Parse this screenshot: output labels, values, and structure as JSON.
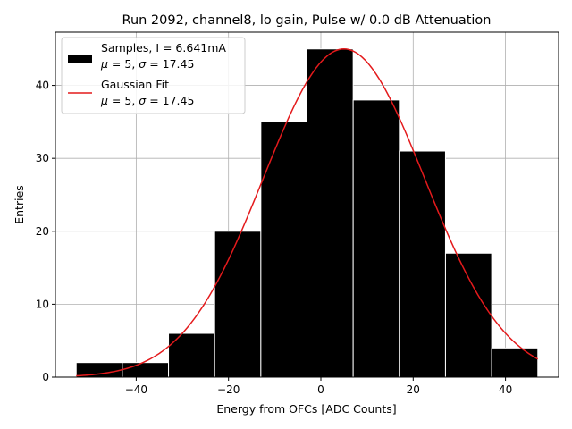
{
  "chart_data": {
    "type": "bar",
    "title": "Run 2092, channel8, lo gain, Pulse w/ 0.0 dB Attenuation",
    "xlabel": "Energy from OFCs [ADC Counts]",
    "ylabel": "Entries",
    "xlim": [
      -57.5,
      51.5
    ],
    "ylim": [
      0,
      47.3
    ],
    "xticks": [
      -40,
      -20,
      0,
      20,
      40
    ],
    "xtick_labels": [
      "−40",
      "−20",
      "0",
      "20",
      "40"
    ],
    "yticks": [
      0,
      10,
      20,
      30,
      40
    ],
    "yticks_labels": [
      "0",
      "10",
      "20",
      "30",
      "40"
    ],
    "grid": true,
    "legend_placement": "top-left",
    "bin_edges": [
      -53,
      -43,
      -33,
      -23,
      -13,
      -3,
      7,
      17,
      27,
      37,
      47
    ],
    "counts": [
      2,
      2,
      6,
      20,
      35,
      45,
      38,
      31,
      17,
      4
    ],
    "bar_color": "#000000",
    "bar_edge_color": "#ffffff",
    "fit": {
      "amplitude": 45,
      "mean": 5,
      "sigma": 17.45,
      "x_range": [
        -53,
        47
      ],
      "color": "#e41a1c"
    },
    "legend": [
      {
        "kind": "patch",
        "line1": "Samples, I = 6.641mA",
        "mu_value": "5",
        "sigma_value": "17.45"
      },
      {
        "kind": "line",
        "line1": "Gaussian Fit",
        "mu_value": "5",
        "sigma_value": "17.45"
      }
    ]
  }
}
